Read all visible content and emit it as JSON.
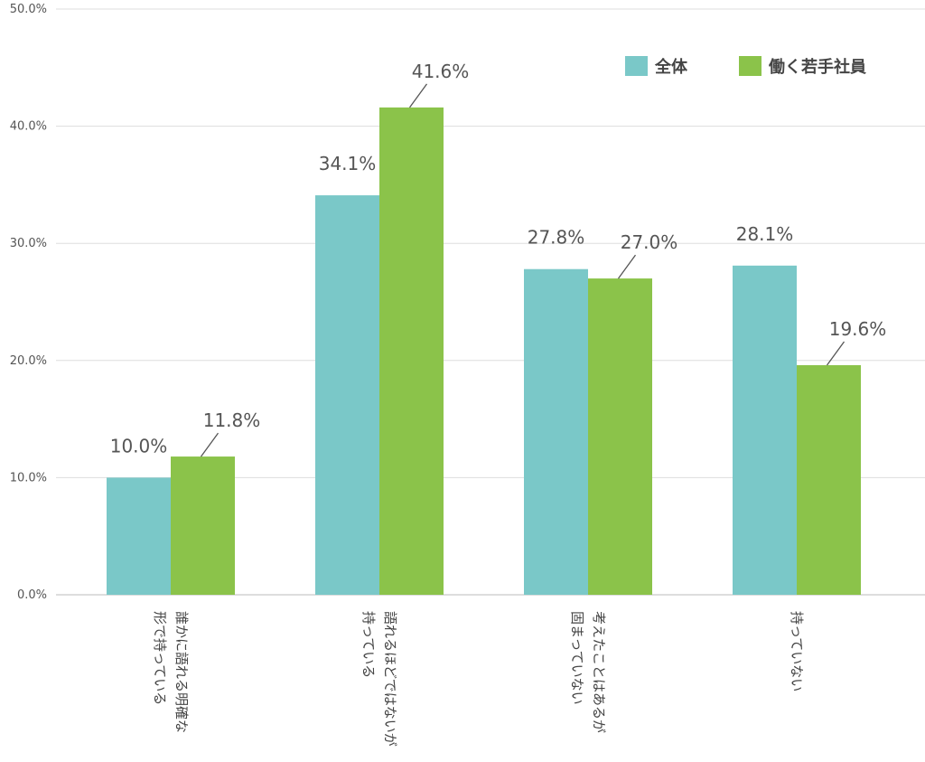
{
  "chart_data": {
    "type": "bar",
    "title": "",
    "xlabel": "",
    "ylabel": "",
    "ylim": [
      0,
      50
    ],
    "y_ticks": [
      "0.0%",
      "10.0%",
      "20.0%",
      "30.0%",
      "40.0%",
      "50.0%"
    ],
    "grid": true,
    "legend_position": "top-right",
    "categories": [
      [
        "誰かに語れる明確な",
        "形で持っている"
      ],
      [
        "語れるほどではないが",
        "持っている"
      ],
      [
        "考えたことはあるが",
        "固まっていない"
      ],
      [
        "持っていない"
      ]
    ],
    "series": [
      {
        "name": "全体",
        "color": "#7ac8c8",
        "values": [
          10.0,
          34.1,
          27.8,
          28.1
        ],
        "labels": [
          "10.0%",
          "34.1%",
          "27.8%",
          "28.1%"
        ]
      },
      {
        "name": "働く若手社員",
        "color": "#8bc34a",
        "values": [
          11.8,
          41.6,
          27.0,
          19.6
        ],
        "labels": [
          "11.8%",
          "41.6%",
          "27.0%",
          "19.6%"
        ]
      }
    ]
  }
}
